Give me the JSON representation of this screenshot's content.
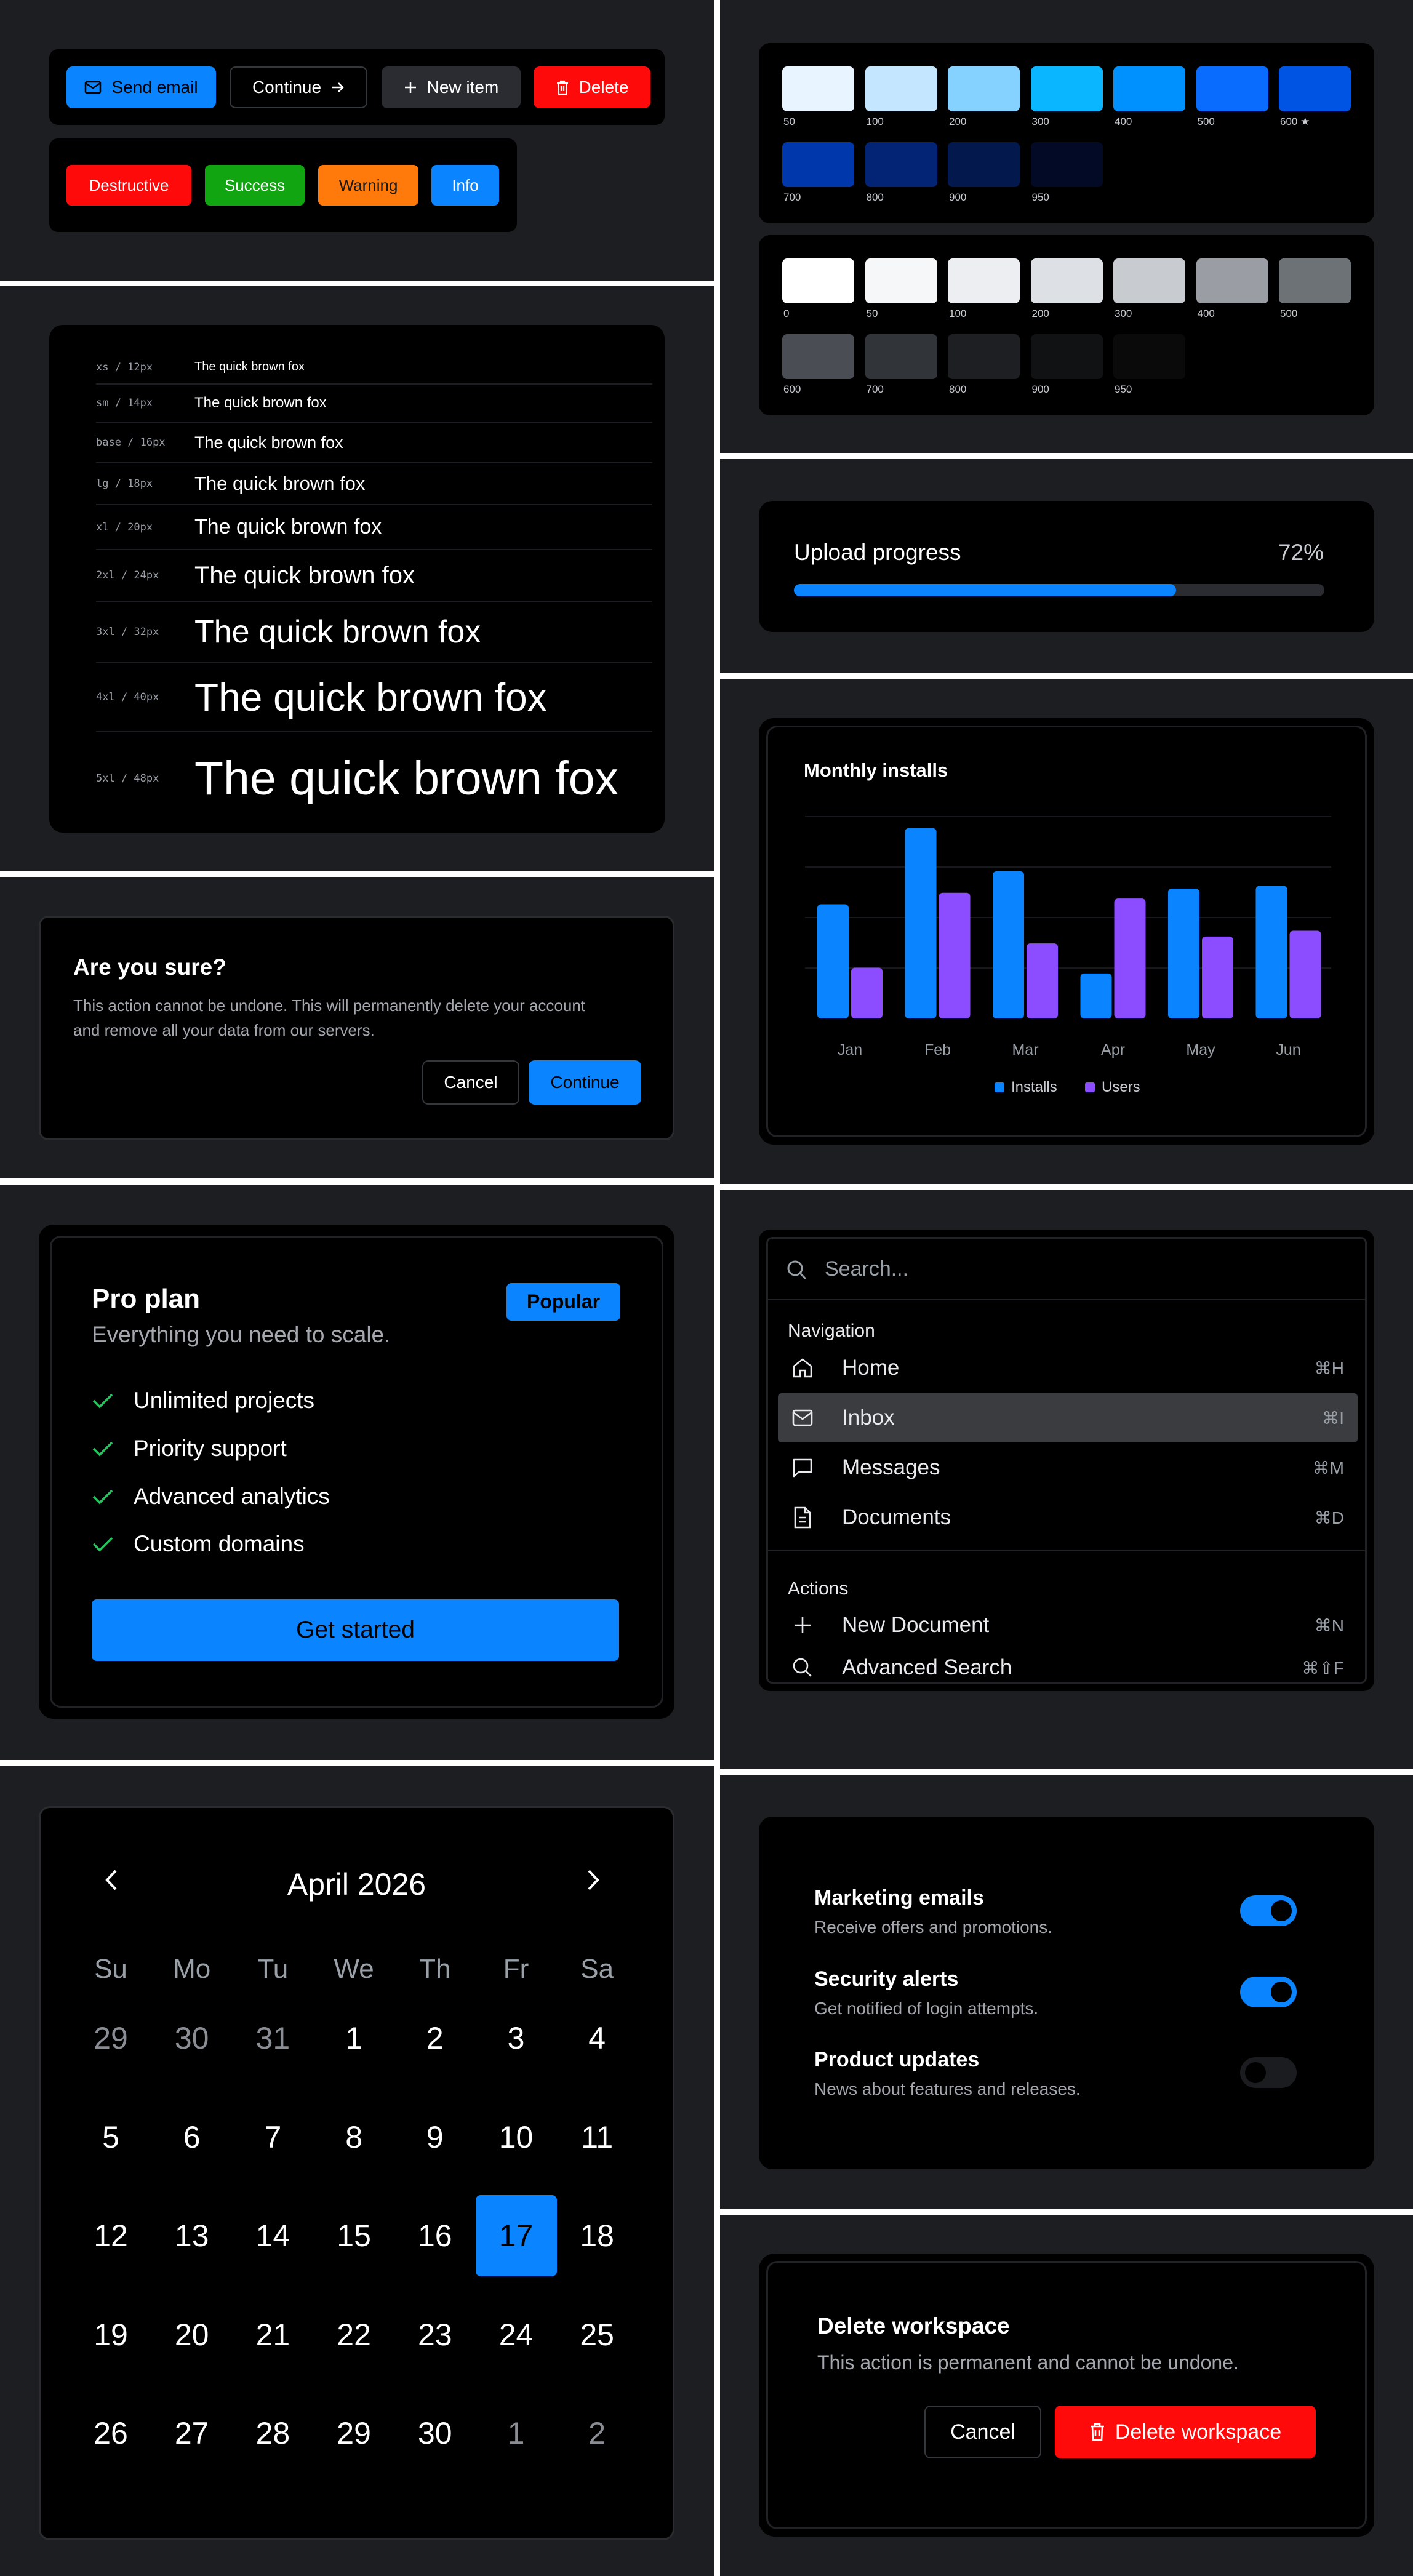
{
  "buttons": {
    "send_email": "Send email",
    "continue": "Continue",
    "new_item": "New item",
    "delete": "Delete",
    "badges": [
      "Destructive",
      "Success",
      "Warning",
      "Info"
    ]
  },
  "typography": {
    "sample": "The quick brown fox",
    "scale": [
      "xs / 12px",
      "sm / 14px",
      "base / 16px",
      "lg / 18px",
      "xl / 20px",
      "2xl / 24px",
      "3xl / 32px",
      "4xl / 40px",
      "5xl / 48px"
    ]
  },
  "alert_dialog": {
    "title": "Are you sure?",
    "body_line1": "This action cannot be undone. This will permanently delete your account",
    "body_line2": "and remove all your data from our servers.",
    "cancel": "Cancel",
    "continue": "Continue"
  },
  "pricing": {
    "title": "Pro plan",
    "subtitle": "Everything you need to scale.",
    "badge": "Popular",
    "features": [
      "Unlimited projects",
      "Priority support",
      "Advanced analytics",
      "Custom domains"
    ],
    "cta": "Get started"
  },
  "calendar": {
    "month": "April 2026",
    "weekdays": [
      "Su",
      "Mo",
      "Tu",
      "We",
      "Th",
      "Fr",
      "Sa"
    ],
    "days": [
      [
        "29",
        "30",
        "31",
        "1",
        "2",
        "3",
        "4"
      ],
      [
        "5",
        "6",
        "7",
        "8",
        "9",
        "10",
        "11"
      ],
      [
        "12",
        "13",
        "14",
        "15",
        "16",
        "17",
        "18"
      ],
      [
        "19",
        "20",
        "21",
        "22",
        "23",
        "24",
        "25"
      ],
      [
        "26",
        "27",
        "28",
        "29",
        "30",
        "1",
        "2"
      ]
    ],
    "selected": "17"
  },
  "palette": {
    "blue": [
      {
        "label": "50",
        "color": "#e8f4ff"
      },
      {
        "label": "100",
        "color": "#c4e6ff"
      },
      {
        "label": "200",
        "color": "#85d1ff"
      },
      {
        "label": "300",
        "color": "#0ab6ff"
      },
      {
        "label": "400",
        "color": "#0091ff"
      },
      {
        "label": "500",
        "color": "#0a6cff"
      },
      {
        "label": "600 ★",
        "color": "#0054e3"
      },
      {
        "label": "700",
        "color": "#0037aa"
      },
      {
        "label": "800",
        "color": "#032475"
      },
      {
        "label": "900",
        "color": "#03184c"
      },
      {
        "label": "950",
        "color": "#030a26"
      }
    ],
    "gray": [
      {
        "label": "0",
        "color": "#ffffff"
      },
      {
        "label": "50",
        "color": "#f6f7f9"
      },
      {
        "label": "100",
        "color": "#eceef2"
      },
      {
        "label": "200",
        "color": "#dde0e5"
      },
      {
        "label": "300",
        "color": "#c8cbd0"
      },
      {
        "label": "400",
        "color": "#9a9ea4"
      },
      {
        "label": "500",
        "color": "#6d7277"
      },
      {
        "label": "600",
        "color": "#4a4e54"
      },
      {
        "label": "700",
        "color": "#313438"
      },
      {
        "label": "800",
        "color": "#1d1f23"
      },
      {
        "label": "900",
        "color": "#111214"
      },
      {
        "label": "950",
        "color": "#0a0a0b"
      }
    ]
  },
  "upload": {
    "label": "Upload progress",
    "percent_text": "72%",
    "value": 0.72
  },
  "chart_data": {
    "type": "bar",
    "title": "Monthly installs",
    "categories": [
      "Jan",
      "Feb",
      "Mar",
      "Apr",
      "May",
      "Jun"
    ],
    "series": [
      {
        "name": "Installs",
        "color": "#0a84ff",
        "values": [
          198,
          330,
          255,
          78,
          225,
          230
        ]
      },
      {
        "name": "Users",
        "color": "#8b4dff",
        "values": [
          88,
          218,
          130,
          208,
          142,
          152
        ]
      }
    ],
    "ylim": [
      0,
      350
    ],
    "legend": "bottom"
  },
  "command": {
    "placeholder": "Search...",
    "group_nav": "Navigation",
    "nav": [
      {
        "label": "Home",
        "kbd": "⌘H",
        "icon": "home-icon"
      },
      {
        "label": "Inbox",
        "kbd": "⌘I",
        "icon": "mail-icon"
      },
      {
        "label": "Messages",
        "kbd": "⌘M",
        "icon": "message-icon"
      },
      {
        "label": "Documents",
        "kbd": "⌘D",
        "icon": "document-icon"
      }
    ],
    "group_actions": "Actions",
    "actions": [
      {
        "label": "New Document",
        "kbd": "⌘N",
        "icon": "plus-icon"
      },
      {
        "label": "Advanced Search",
        "kbd": "⌘⇧F",
        "icon": "search-icon"
      }
    ]
  },
  "settings": [
    {
      "title": "Marketing emails",
      "desc": "Receive offers and promotions.",
      "on": true
    },
    {
      "title": "Security alerts",
      "desc": "Get notified of login attempts.",
      "on": true
    },
    {
      "title": "Product updates",
      "desc": "News about features and releases.",
      "on": false
    }
  ],
  "delete_workspace": {
    "title": "Delete workspace",
    "body": "This action is permanent and cannot be undone.",
    "cancel": "Cancel",
    "confirm": "Delete workspace"
  }
}
